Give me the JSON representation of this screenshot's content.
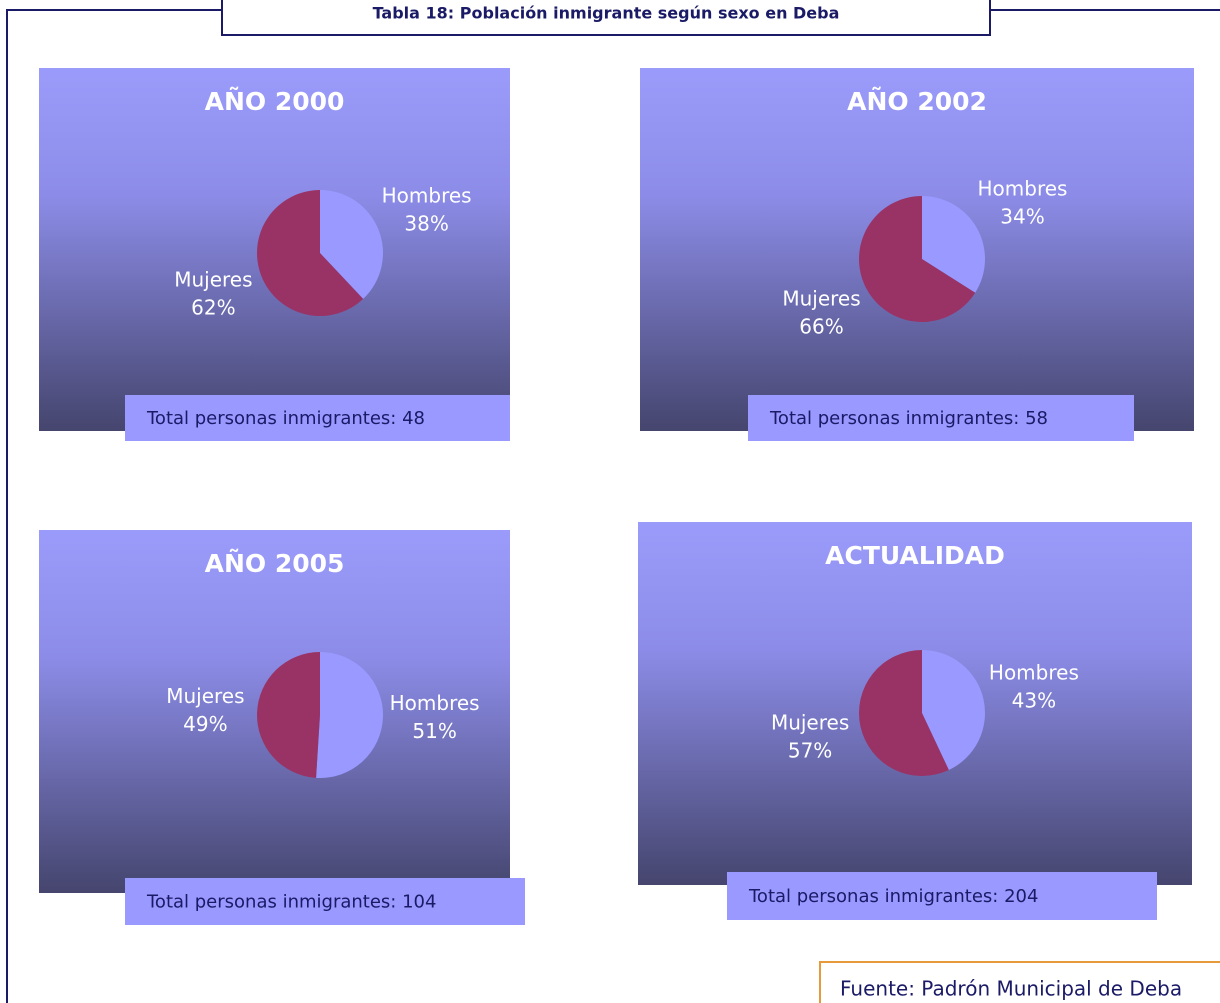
{
  "title": "Tabla 18: Población inmigrante según sexo en Deba",
  "source": "Fuente: Padrón Municipal de Deba",
  "chart_data": [
    {
      "type": "pie",
      "title": "AÑO 2000",
      "categories": [
        "Hombres",
        "Mujeres"
      ],
      "values": [
        38,
        62
      ],
      "value_labels": [
        "38%",
        "62%"
      ],
      "colors": [
        "#9999ff",
        "#993366"
      ],
      "annotation": "Total personas inmigrantes: 48"
    },
    {
      "type": "pie",
      "title": "AÑO 2002",
      "categories": [
        "Hombres",
        "Mujeres"
      ],
      "values": [
        34,
        66
      ],
      "value_labels": [
        "34%",
        "66%"
      ],
      "colors": [
        "#9999ff",
        "#993366"
      ],
      "annotation": "Total personas inmigrantes: 58"
    },
    {
      "type": "pie",
      "title": "AÑO 2005",
      "categories": [
        "Hombres",
        "Mujeres"
      ],
      "values": [
        51,
        49
      ],
      "value_labels": [
        "51%",
        "49%"
      ],
      "colors": [
        "#9999ff",
        "#993366"
      ],
      "annotation": "Total personas inmigrantes: 104"
    },
    {
      "type": "pie",
      "title": "ACTUALIDAD",
      "categories": [
        "Hombres",
        "Mujeres"
      ],
      "values": [
        43,
        57
      ],
      "value_labels": [
        "43%",
        "57%"
      ],
      "colors": [
        "#9999ff",
        "#993366"
      ],
      "annotation": "Total personas inmigrantes: 204"
    }
  ]
}
